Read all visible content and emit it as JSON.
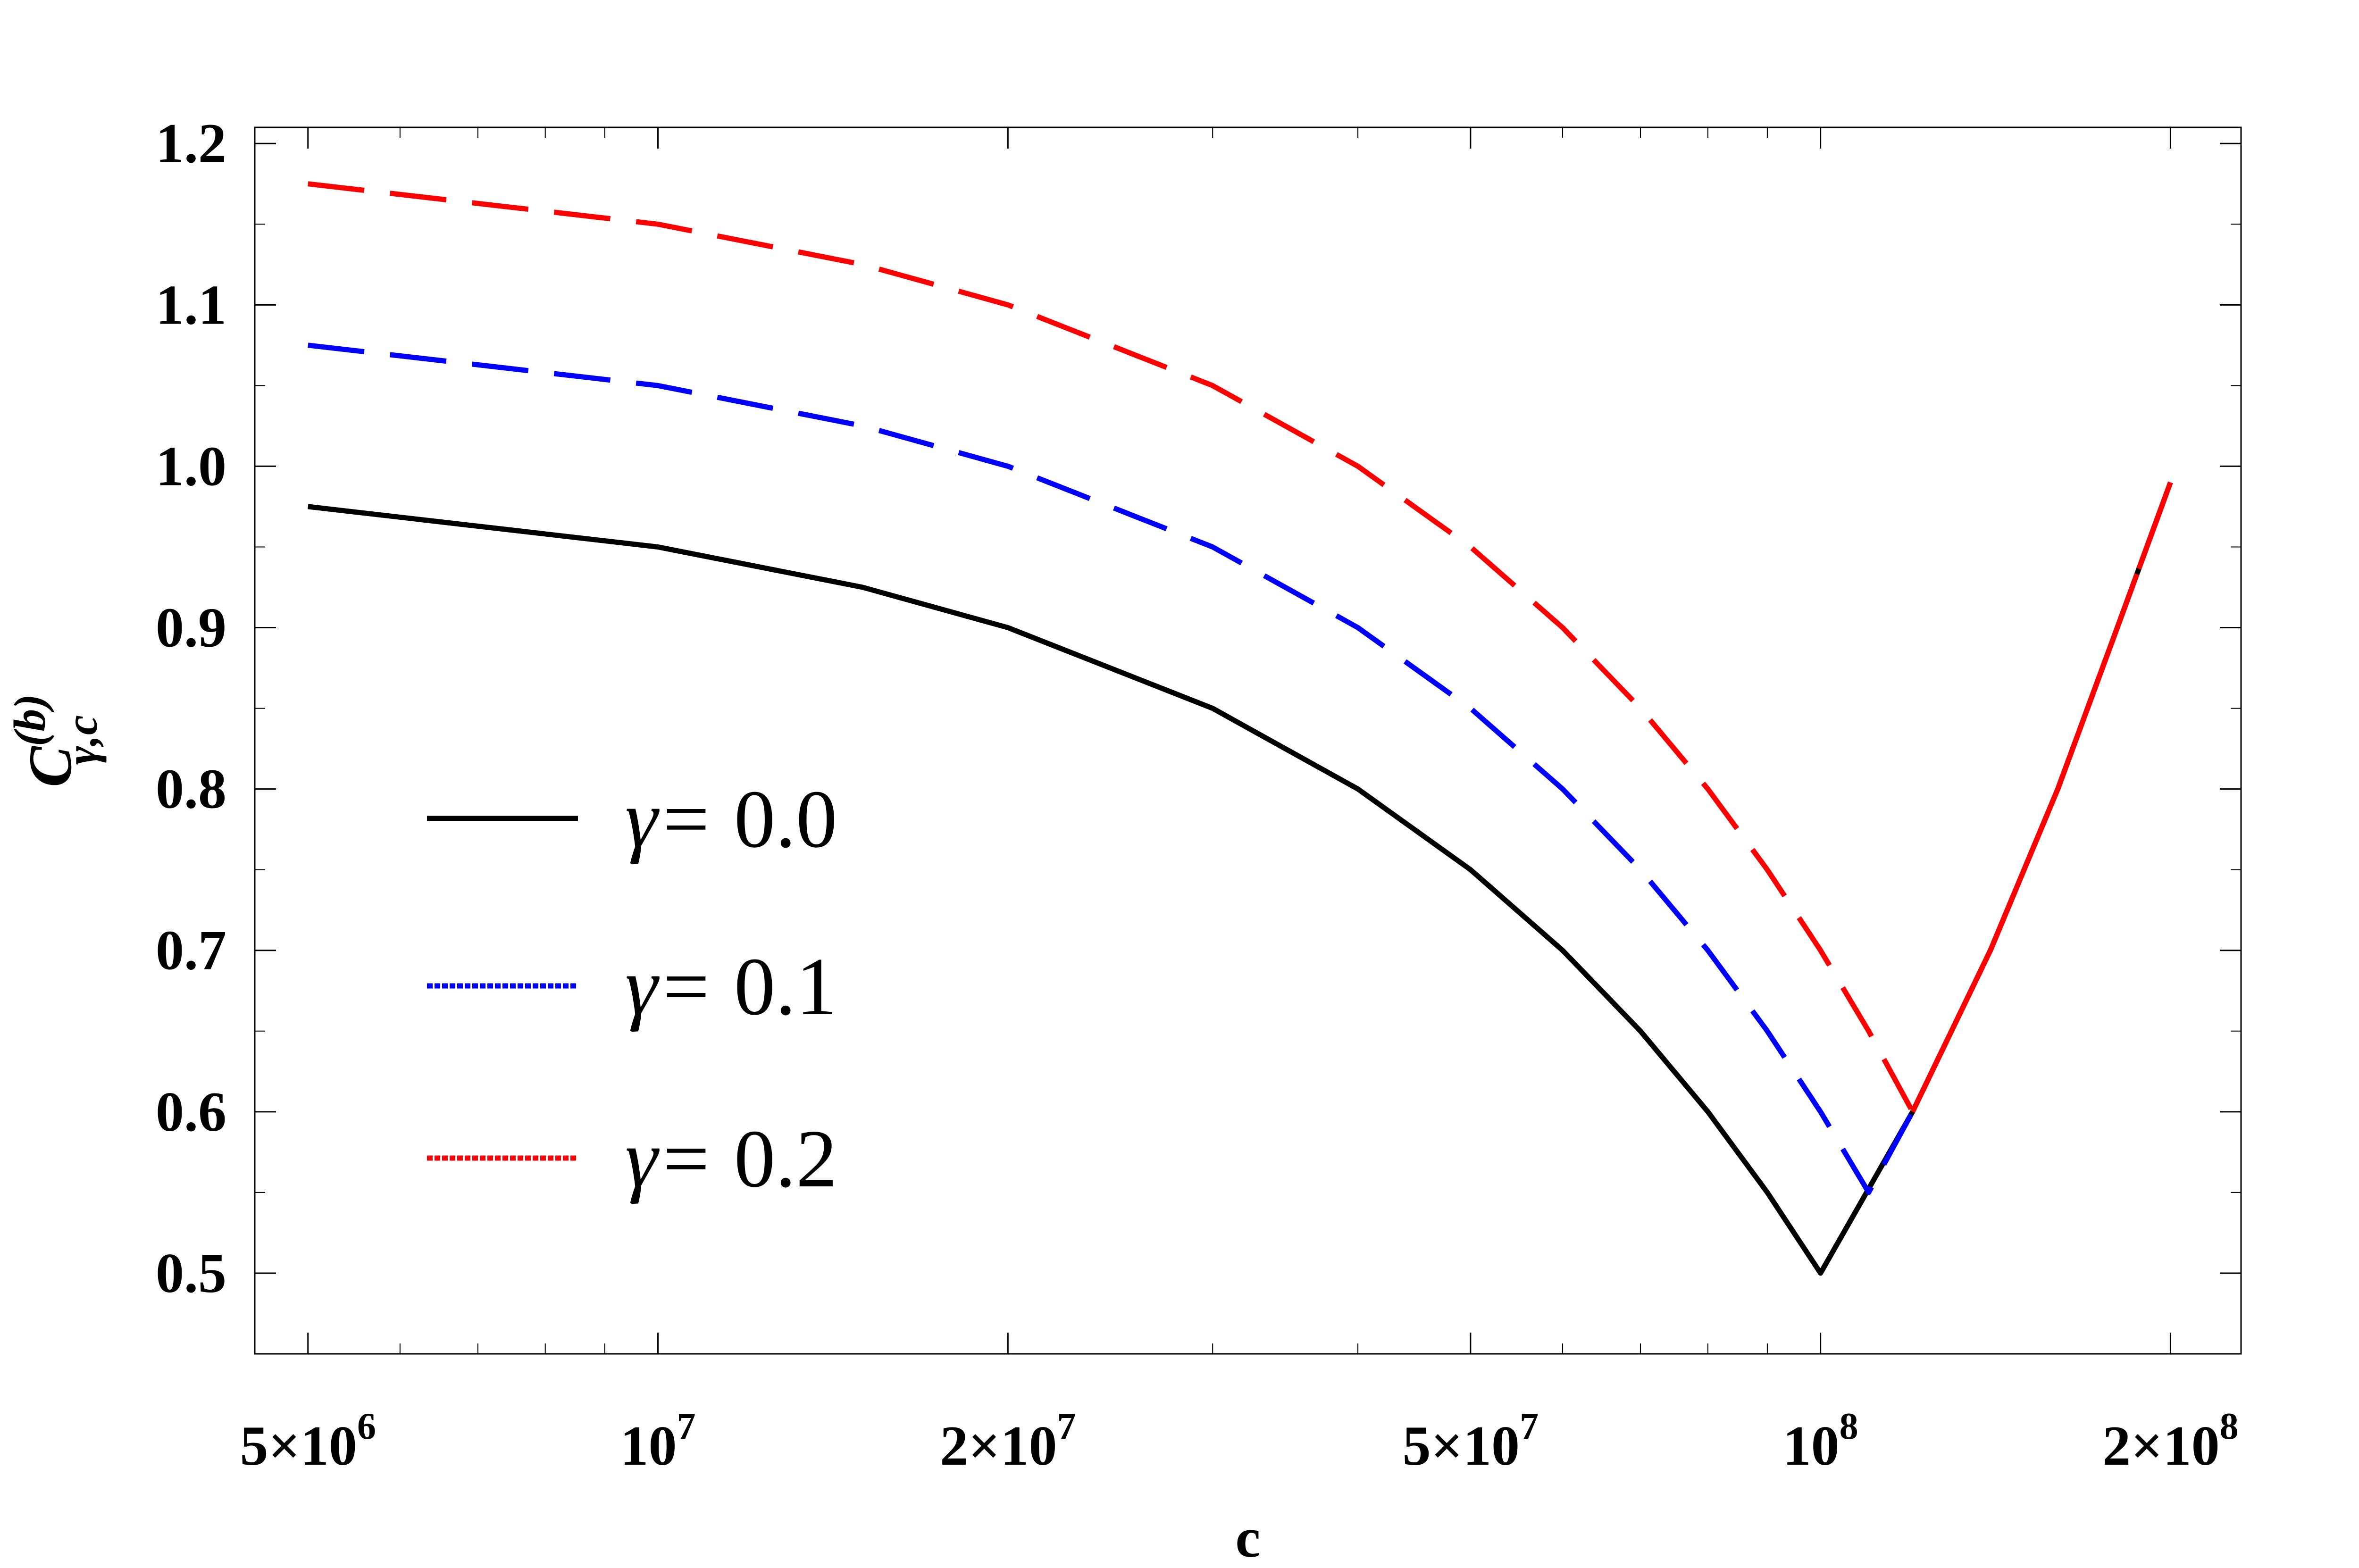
{
  "chart_data": {
    "type": "line",
    "xscale": "log",
    "xlim": [
      4500000,
      230000000
    ],
    "ylim": [
      0.45,
      1.21
    ],
    "xlabel": "c",
    "ylabel": "C",
    "ylabel_sup": "(b)",
    "ylabel_sub": "γ,c",
    "x_ticks": [
      {
        "value": 5000000,
        "base": "5×10",
        "exp": "6"
      },
      {
        "value": 10000000,
        "base": "10",
        "exp": "7"
      },
      {
        "value": 20000000,
        "base": "2×10",
        "exp": "7"
      },
      {
        "value": 50000000,
        "base": "5×10",
        "exp": "7"
      },
      {
        "value": 100000000,
        "base": "10",
        "exp": "8"
      },
      {
        "value": 200000000,
        "base": "2×10",
        "exp": "8"
      }
    ],
    "y_ticks": [
      "0.5",
      "0.6",
      "0.7",
      "0.8",
      "0.9",
      "1.0",
      "1.1",
      "1.2"
    ],
    "grid": false,
    "legend_position": "bottom-left",
    "series": [
      {
        "name": "0.0",
        "legend_prefix": "γ= ",
        "color": "#000000",
        "style": "solid",
        "x": [
          5000000,
          10000000,
          15000000,
          20000000,
          30000000,
          40000000,
          50000000,
          60000000,
          70000000,
          80000000,
          90000000,
          100000000,
          120000000,
          140000000,
          160000000,
          180000000,
          200000000
        ],
        "y": [
          0.975,
          0.95,
          0.925,
          0.9,
          0.85,
          0.8,
          0.75,
          0.7,
          0.65,
          0.6,
          0.55,
          0.5,
          0.6,
          0.7,
          0.8,
          0.9,
          0.99
        ]
      },
      {
        "name": "0.1",
        "legend_prefix": "γ= ",
        "color": "#0000ff",
        "style": "dashed",
        "x": [
          5000000,
          10000000,
          15000000,
          20000000,
          30000000,
          40000000,
          50000000,
          60000000,
          70000000,
          80000000,
          90000000,
          100000000,
          110000000,
          120000000,
          140000000,
          160000000,
          180000000,
          200000000
        ],
        "y": [
          1.075,
          1.05,
          1.025,
          1.0,
          0.95,
          0.9,
          0.85,
          0.8,
          0.75,
          0.7,
          0.65,
          0.6,
          0.55,
          0.6,
          0.7,
          0.8,
          0.9,
          0.99
        ]
      },
      {
        "name": "0.2",
        "legend_prefix": "γ= ",
        "color": "#ff0000",
        "style": "dashed",
        "x": [
          5000000,
          10000000,
          15000000,
          20000000,
          30000000,
          40000000,
          50000000,
          60000000,
          70000000,
          80000000,
          90000000,
          100000000,
          110000000,
          120000000,
          140000000,
          160000000,
          180000000,
          200000000
        ],
        "y": [
          1.175,
          1.15,
          1.125,
          1.1,
          1.05,
          1.0,
          0.95,
          0.9,
          0.85,
          0.8,
          0.75,
          0.7,
          0.65,
          0.6,
          0.7,
          0.8,
          0.9,
          0.99
        ]
      }
    ]
  }
}
